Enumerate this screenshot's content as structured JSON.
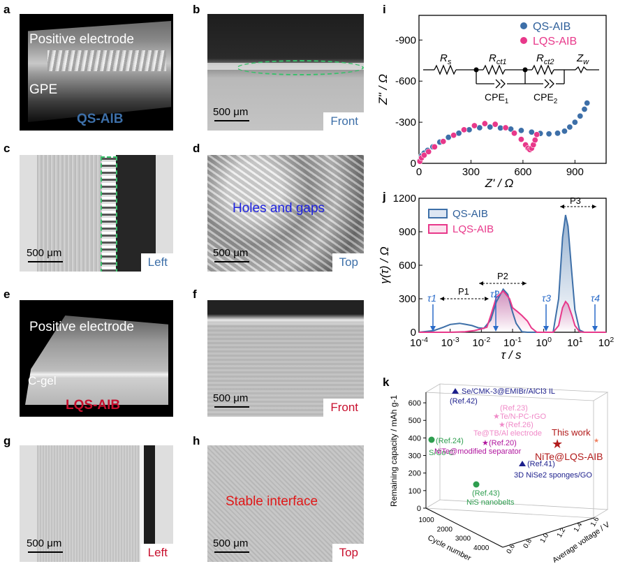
{
  "panels": {
    "a": {
      "letter": "a",
      "top_text": "Positive electrode",
      "bottom_text": "GPE",
      "sample": "QS-AIB"
    },
    "b": {
      "letter": "b",
      "scale": "500 μm",
      "view": "Front"
    },
    "c": {
      "letter": "c",
      "scale": "500 μm",
      "view": "Left"
    },
    "d": {
      "letter": "d",
      "scale": "500 μm",
      "view": "Top",
      "note": "Holes and gaps"
    },
    "e": {
      "letter": "e",
      "top_text": "Positive electrode",
      "bottom_text": "C-gel",
      "sample": "LQS-AIB"
    },
    "f": {
      "letter": "f",
      "scale": "500 μm",
      "view": "Front"
    },
    "g": {
      "letter": "g",
      "scale": "500 μm",
      "view": "Left"
    },
    "h": {
      "letter": "h",
      "scale": "500 μm",
      "view": "Top",
      "note": "Stable interface"
    },
    "i": {
      "letter": "i"
    },
    "j": {
      "letter": "j"
    },
    "k": {
      "letter": "k"
    }
  },
  "colors": {
    "qs": "#3d6fa8",
    "lqs": "#e8388a",
    "blue_label": "#2e5f9a",
    "red_label": "#c8102e",
    "green": "#2e9e4f",
    "navy": "#1c1f8c",
    "pink_light": "#f08ac8",
    "magenta": "#b0159e"
  },
  "circuit": {
    "rs": "R",
    "rs_sub": "s",
    "rct1": "R",
    "rct1_sub": "ct1",
    "rct2": "R",
    "rct2_sub": "ct2",
    "zw": "Z",
    "zw_sub": "w",
    "cpe1": "CPE",
    "cpe1_sub": "1",
    "cpe2": "CPE",
    "cpe2_sub": "2"
  },
  "chart_data": [
    {
      "panel": "i",
      "type": "scatter",
      "xlabel": "Z' / Ω",
      "ylabel": "Z'' / Ω",
      "xlim": [
        0,
        1080
      ],
      "ylim": [
        0,
        -1080
      ],
      "xticks": [
        "0",
        "300",
        "600",
        "900"
      ],
      "yticks": [
        "0",
        "-300",
        "-600",
        "-900"
      ],
      "legend_position": "top-right",
      "series": [
        {
          "name": "QS-AIB",
          "x": [
            5,
            15,
            30,
            50,
            80,
            120,
            170,
            230,
            290,
            350,
            410,
            470,
            530,
            590,
            650,
            700,
            750,
            800,
            840,
            870,
            900,
            930,
            955,
            970
          ],
          "y": [
            -20,
            -55,
            -75,
            -95,
            -120,
            -155,
            -190,
            -220,
            -245,
            -260,
            -265,
            -258,
            -250,
            -240,
            -228,
            -218,
            -215,
            -220,
            -235,
            -265,
            -300,
            -345,
            -395,
            -440
          ]
        },
        {
          "name": "LQS-AIB",
          "x": [
            5,
            15,
            30,
            55,
            90,
            140,
            200,
            260,
            320,
            380,
            440,
            500,
            550,
            590,
            615,
            630,
            640,
            650,
            660,
            670,
            680
          ],
          "y": [
            -15,
            -40,
            -60,
            -85,
            -120,
            -160,
            -205,
            -245,
            -275,
            -290,
            -285,
            -260,
            -220,
            -175,
            -135,
            -110,
            -100,
            -110,
            -135,
            -170,
            -210
          ]
        }
      ]
    },
    {
      "panel": "j",
      "type": "line",
      "xlabel": "τ / s",
      "ylabel": "γ(τ) / Ω",
      "xscale": "log",
      "xlim": [
        0.0001,
        100
      ],
      "ylim": [
        0,
        1200
      ],
      "xticks": [
        "10-4",
        "10-3",
        "10-2",
        "10-1",
        "100",
        "101",
        "102"
      ],
      "yticks": [
        "0",
        "300",
        "600",
        "900",
        "1200"
      ],
      "legend_position": "top-left",
      "annotations": {
        "tau1": "τ1",
        "tau2": "τ2",
        "tau3": "τ3",
        "tau4": "τ4",
        "p1": "P1",
        "p2": "P2",
        "p3": "P3"
      },
      "series": [
        {
          "name": "QS-AIB",
          "tau": [
            0.0001,
            0.0003,
            0.0006,
            0.001,
            0.002,
            0.003,
            0.005,
            0.008,
            0.012,
            0.02,
            0.03,
            0.05,
            0.07,
            0.1,
            0.13,
            0.2,
            0.3,
            0.6,
            1,
            2,
            3,
            4,
            5,
            6,
            8,
            10,
            14,
            20,
            100
          ],
          "gamma": [
            0,
            15,
            45,
            70,
            80,
            72,
            60,
            40,
            35,
            110,
            270,
            385,
            340,
            180,
            80,
            5,
            0,
            0,
            0,
            0,
            300,
            850,
            1050,
            950,
            520,
            200,
            20,
            0,
            0
          ]
        },
        {
          "name": "LQS-AIB",
          "tau": [
            0.0001,
            0.001,
            0.003,
            0.006,
            0.01,
            0.015,
            0.02,
            0.03,
            0.05,
            0.08,
            0.1,
            0.15,
            0.2,
            0.3,
            0.4,
            0.6,
            1,
            2,
            3,
            4,
            5,
            6,
            8,
            10,
            14,
            20,
            100
          ],
          "gamma": [
            0,
            0,
            5,
            15,
            30,
            45,
            150,
            310,
            370,
            300,
            220,
            180,
            150,
            100,
            40,
            0,
            0,
            0,
            60,
            220,
            275,
            250,
            150,
            60,
            5,
            0,
            0
          ]
        }
      ]
    },
    {
      "panel": "k",
      "type": "scatter",
      "xlabel": "Cycle number",
      "ylabel": "Remaining capacity / mAh g-1",
      "zlabel": "Average voltage / V",
      "xticks": [
        "1000",
        "2000",
        "3000",
        "4000"
      ],
      "yticks": [
        "0",
        "100",
        "200",
        "300",
        "400",
        "500",
        "600"
      ],
      "zticks": [
        "0.6",
        "0.8",
        "1.0",
        "1.2",
        "1.4",
        "1.6"
      ],
      "points": [
        {
          "label": "Se/CMK-3@EMIBr/AlCl3 IL",
          "ref": "(Ref.42)"
        },
        {
          "label": "Te/N-PC-rGO",
          "ref": "(Ref.23)"
        },
        {
          "label": "S/Co-C",
          "ref": "(Ref.24)"
        },
        {
          "label": "Te@TB/Al electrode",
          "ref": "(Ref.26)"
        },
        {
          "label": "NiTe@modified separator",
          "ref": "(Ref.20)"
        },
        {
          "label": "3D NiSe2 sponges/GO",
          "ref": "(Ref.41)"
        },
        {
          "label": "NiS nanobelts",
          "ref": "(Ref.43)"
        },
        {
          "label": "NiTe@LQS-AIB",
          "ref": "This work"
        }
      ]
    }
  ]
}
